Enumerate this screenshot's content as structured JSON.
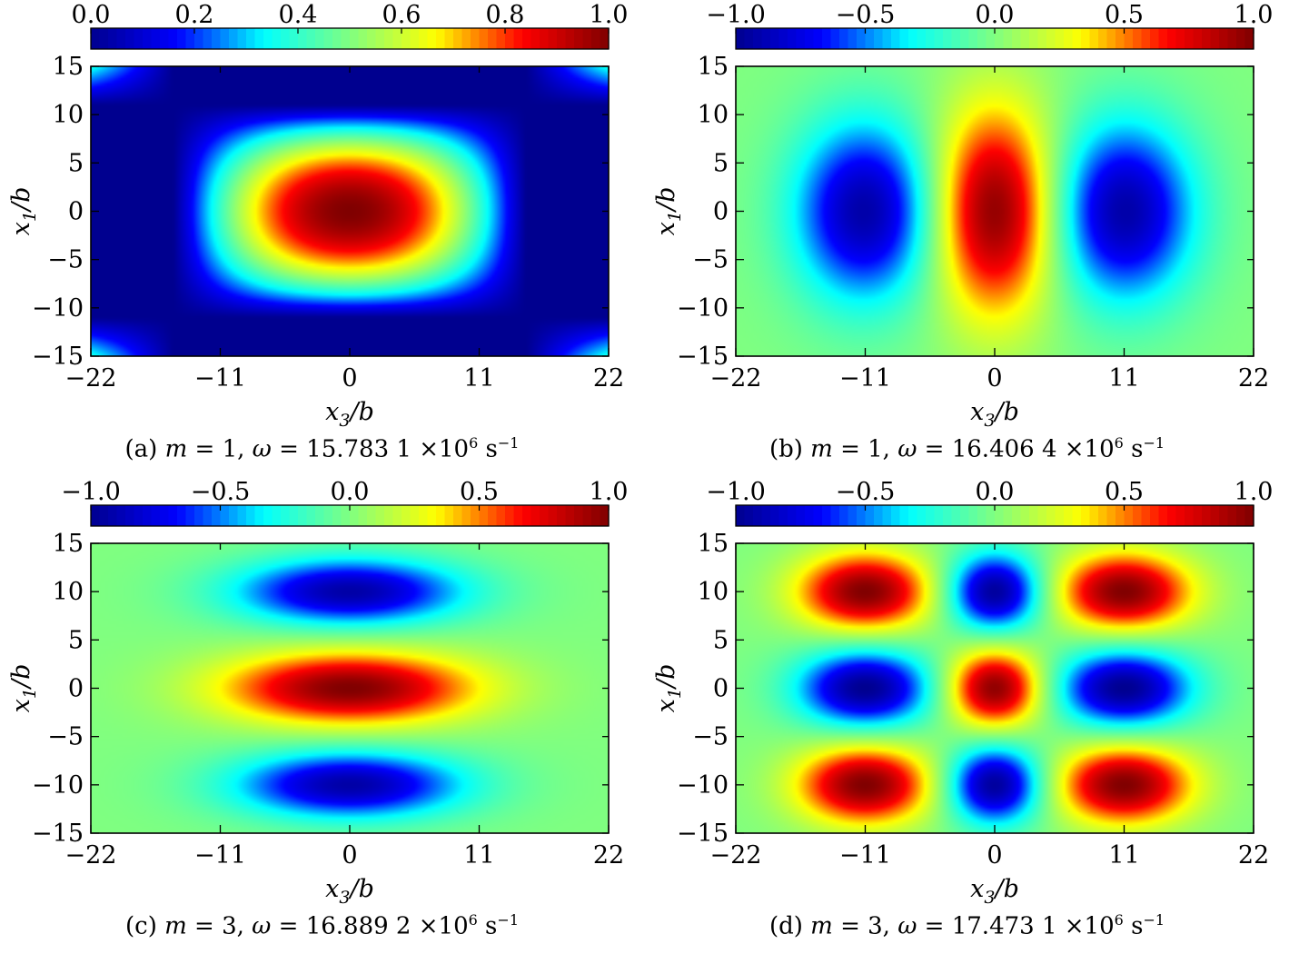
{
  "chart_data": [
    {
      "type": "heatmap",
      "panel": "a",
      "caption": {
        "prefix": "(a) ",
        "m": "1",
        "omega": "15.783 1",
        "exp": "6"
      },
      "xlabel": "x3/b",
      "ylabel": "x1/b",
      "xticks": [
        -22,
        -11,
        0,
        11,
        22
      ],
      "yticks": [
        -15,
        -10,
        -5,
        0,
        5,
        10,
        15
      ],
      "xlim": [
        -22,
        22
      ],
      "ylim": [
        -15,
        15
      ],
      "colorbar": {
        "range": [
          0.0,
          1.0
        ],
        "ticks": [
          0.0,
          0.2,
          0.4,
          0.6,
          0.8,
          1.0
        ]
      },
      "field": {
        "mode": "m1_fundamental",
        "value_range": [
          0.0,
          1.0
        ],
        "peaks": [
          {
            "x": 0,
            "y": 0,
            "value": 1.0
          }
        ]
      }
    },
    {
      "type": "heatmap",
      "panel": "b",
      "caption": {
        "prefix": "(b) ",
        "m": "1",
        "omega": "16.406 4",
        "exp": "6"
      },
      "xlabel": "x3/b",
      "ylabel": "x1/b",
      "xticks": [
        -22,
        -11,
        0,
        11,
        22
      ],
      "yticks": [
        -15,
        -10,
        -5,
        0,
        5,
        10,
        15
      ],
      "xlim": [
        -22,
        22
      ],
      "ylim": [
        -15,
        15
      ],
      "colorbar": {
        "range": [
          -1.0,
          1.0
        ],
        "ticks": [
          -1.0,
          -0.5,
          0.0,
          0.5,
          1.0
        ]
      },
      "field": {
        "mode": "m1_third_order",
        "value_range": [
          -1.0,
          1.0
        ],
        "peaks": [
          {
            "x": -11,
            "y": 0,
            "value": -1.0
          },
          {
            "x": 0,
            "y": 0,
            "value": 1.0
          },
          {
            "x": 11,
            "y": 0,
            "value": -1.0
          }
        ]
      }
    },
    {
      "type": "heatmap",
      "panel": "c",
      "caption": {
        "prefix": "(c) ",
        "m": "3",
        "omega": "16.889 2",
        "exp": "6"
      },
      "xlabel": "x3/b",
      "ylabel": "x1/b",
      "xticks": [
        -22,
        -11,
        0,
        11,
        22
      ],
      "yticks": [
        -15,
        -10,
        -5,
        0,
        5,
        10,
        15
      ],
      "xlim": [
        -22,
        22
      ],
      "ylim": [
        -15,
        15
      ],
      "colorbar": {
        "range": [
          -1.0,
          1.0
        ],
        "ticks": [
          -1.0,
          -0.5,
          0.0,
          0.5,
          1.0
        ]
      },
      "field": {
        "mode": "m3_first_order",
        "value_range": [
          -1.0,
          1.0
        ],
        "peaks": [
          {
            "x": 0,
            "y": 10,
            "value": -1.0
          },
          {
            "x": 0,
            "y": 0,
            "value": 1.0
          },
          {
            "x": 0,
            "y": -10,
            "value": -1.0
          }
        ]
      }
    },
    {
      "type": "heatmap",
      "panel": "d",
      "caption": {
        "prefix": "(d) ",
        "m": "3",
        "omega": "17.473 1",
        "exp": "6"
      },
      "xlabel": "x3/b",
      "ylabel": "x1/b",
      "xticks": [
        -22,
        -11,
        0,
        11,
        22
      ],
      "yticks": [
        -15,
        -10,
        -5,
        0,
        5,
        10,
        15
      ],
      "xlim": [
        -22,
        22
      ],
      "ylim": [
        -15,
        15
      ],
      "colorbar": {
        "range": [
          -1.0,
          1.0
        ],
        "ticks": [
          -1.0,
          -0.5,
          0.0,
          0.5,
          1.0
        ]
      },
      "field": {
        "mode": "m3_third_order",
        "value_range": [
          -1.0,
          1.0
        ],
        "peaks": [
          {
            "x": -11,
            "y": 10,
            "value": 1.0
          },
          {
            "x": 0,
            "y": 10,
            "value": -1.0
          },
          {
            "x": 11,
            "y": 10,
            "value": 1.0
          },
          {
            "x": -11,
            "y": 0,
            "value": -1.0
          },
          {
            "x": 0,
            "y": 0,
            "value": 1.0
          },
          {
            "x": 11,
            "y": 0,
            "value": -1.0
          },
          {
            "x": -11,
            "y": -10,
            "value": 1.0
          },
          {
            "x": 0,
            "y": -10,
            "value": -1.0
          },
          {
            "x": 11,
            "y": -10,
            "value": 1.0
          }
        ]
      }
    }
  ],
  "colormap": [
    "#00008f",
    "#0000ff",
    "#00ffff",
    "#80ff80",
    "#ffff00",
    "#ff0000",
    "#800000"
  ],
  "caption_units": {
    "times": "×10",
    "unit": " s",
    "unit_exp": "−1"
  }
}
